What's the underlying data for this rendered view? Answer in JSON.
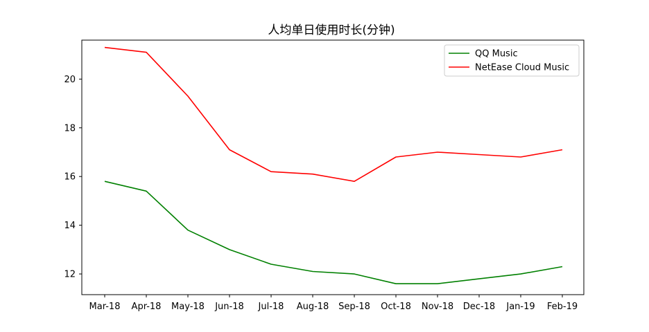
{
  "chart_data": {
    "type": "line",
    "title": "人均单日使用时长(分钟)",
    "xlabel": "",
    "ylabel": "",
    "categories": [
      "Mar-18",
      "Apr-18",
      "May-18",
      "Jun-18",
      "Jul-18",
      "Aug-18",
      "Sep-18",
      "Oct-18",
      "Nov-18",
      "Dec-18",
      "Jan-19",
      "Feb-19"
    ],
    "series": [
      {
        "name": "QQ Music",
        "color": "#008000",
        "values": [
          15.8,
          15.4,
          13.8,
          13.0,
          12.4,
          12.1,
          12.0,
          11.6,
          11.6,
          11.8,
          12.0,
          12.3
        ]
      },
      {
        "name": "NetEase Cloud Music",
        "color": "#ff0000",
        "values": [
          21.3,
          21.1,
          19.3,
          17.1,
          16.2,
          16.1,
          15.8,
          16.8,
          17.0,
          16.9,
          16.8,
          17.1
        ]
      }
    ],
    "ylim": [
      11.15,
      21.6
    ],
    "yticks": [
      12,
      14,
      16,
      18,
      20
    ],
    "grid": false,
    "legend_position": "top-right"
  }
}
